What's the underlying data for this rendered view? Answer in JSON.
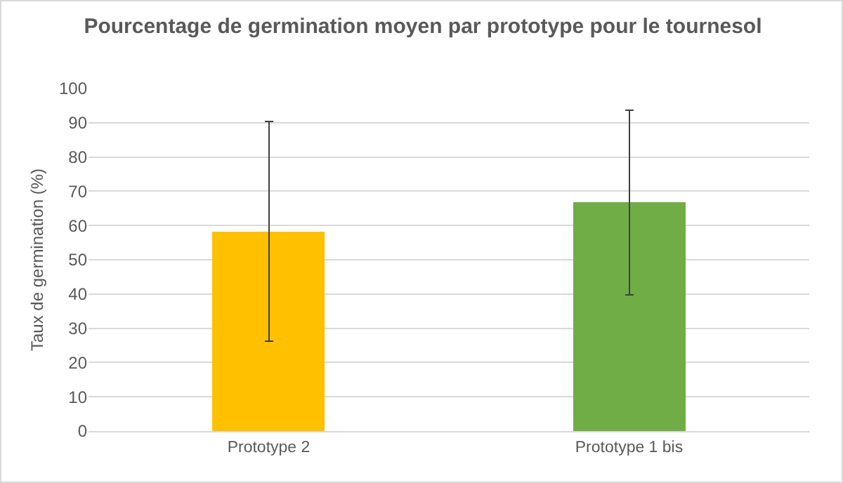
{
  "chart_data": {
    "type": "bar",
    "title": "Pourcentage de germination moyen par prototype pour le tournesol",
    "ylabel": "Taux de germination (%)",
    "categories": [
      "Prototype 2",
      "Prototype 1 bis"
    ],
    "values": [
      58.3,
      66.7
    ],
    "colors": [
      "#ffc000",
      "#70ad47"
    ],
    "errors": [
      32,
      27
    ],
    "ylim": [
      0,
      100
    ],
    "yticks": [
      0,
      10,
      20,
      30,
      40,
      50,
      60,
      70,
      80,
      90,
      100
    ],
    "grid": "y",
    "legend": false
  }
}
